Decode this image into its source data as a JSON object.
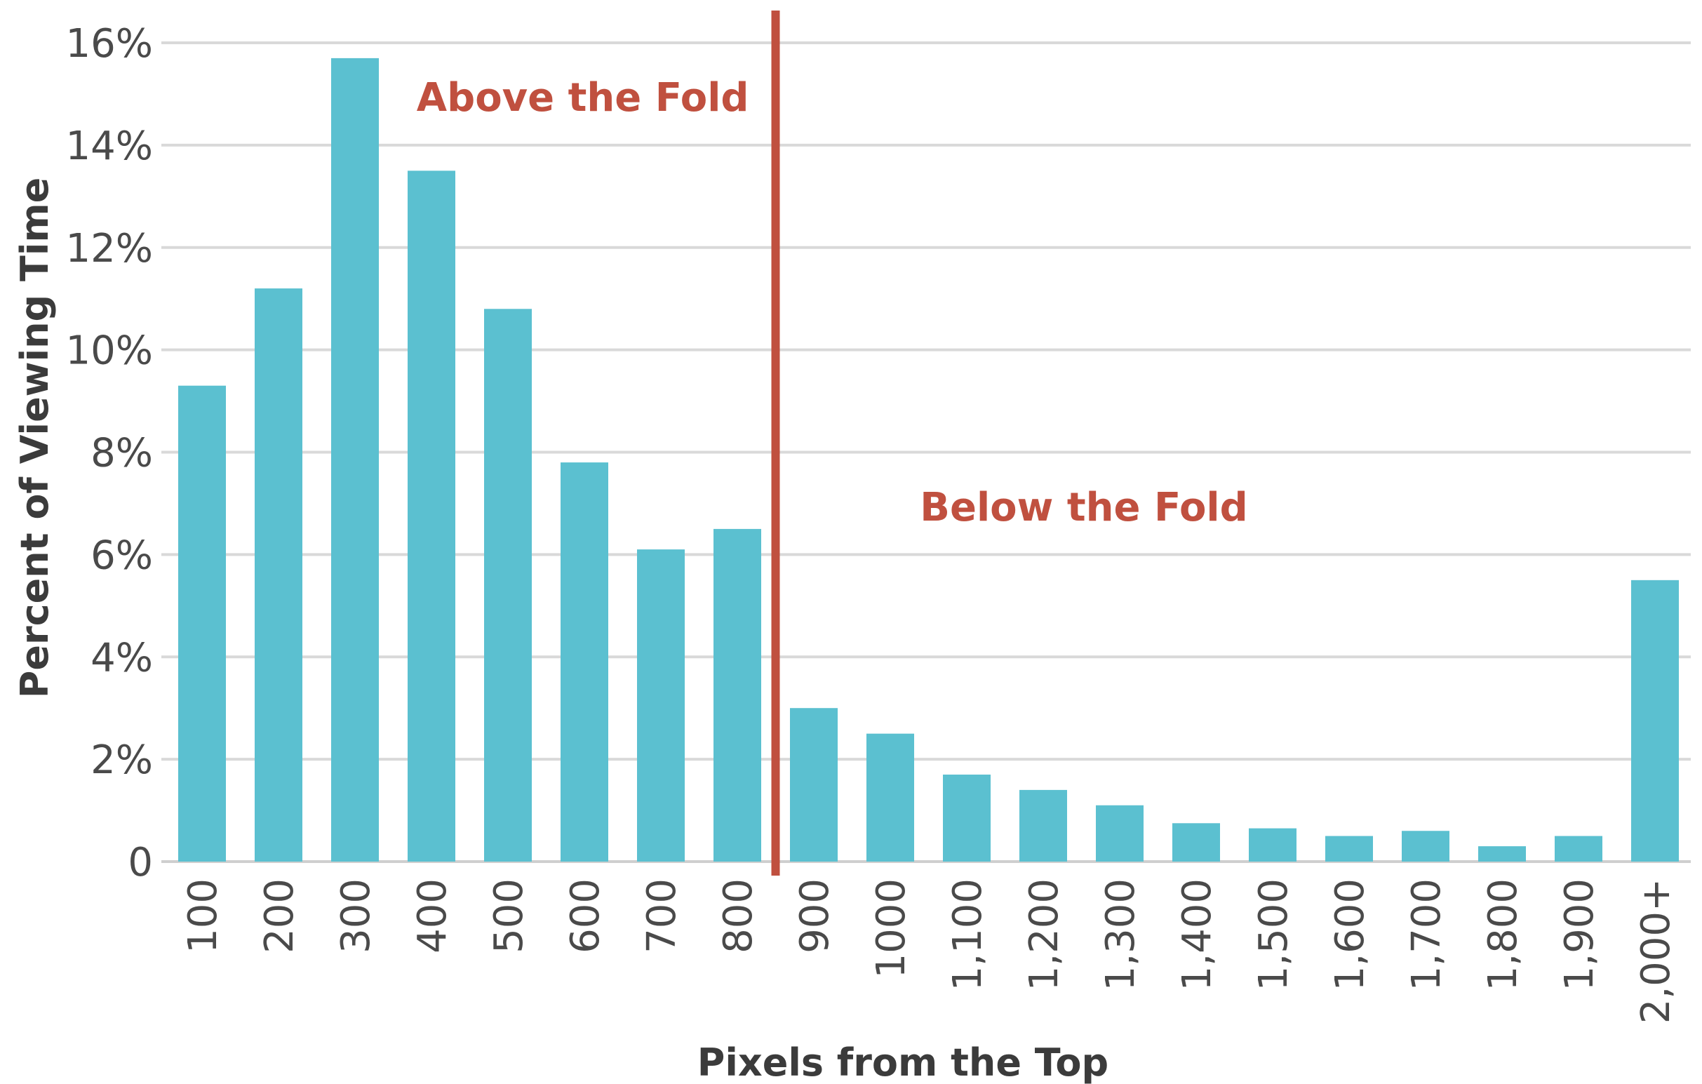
{
  "chart_data": {
    "type": "bar",
    "title": "",
    "xlabel": "Pixels from the Top",
    "ylabel": "Percent of Viewing Time",
    "categories": [
      "100",
      "200",
      "300",
      "400",
      "500",
      "600",
      "700",
      "800",
      "900",
      "1000",
      "1,100",
      "1,200",
      "1,300",
      "1,400",
      "1,500",
      "1,600",
      "1,700",
      "1,800",
      "1,900",
      "2,000+"
    ],
    "values": [
      9.3,
      11.2,
      15.7,
      13.5,
      10.8,
      7.8,
      6.1,
      6.5,
      3.0,
      2.5,
      1.7,
      1.4,
      1.1,
      0.75,
      0.65,
      0.5,
      0.6,
      0.3,
      0.5,
      5.5
    ],
    "ylim": [
      0,
      16
    ],
    "yticks": [
      0,
      2,
      4,
      6,
      8,
      10,
      12,
      14,
      16
    ],
    "ytick_labels": [
      "0",
      "2%",
      "4%",
      "6%",
      "8%",
      "10%",
      "12%",
      "14%",
      "16%"
    ],
    "grid": true,
    "colors": {
      "bar": "#5bc0d0",
      "fold_line": "#c0503f",
      "annotation": "#c0503f",
      "grid": "#d9d9d9"
    },
    "fold": {
      "between_categories": [
        "800",
        "900"
      ],
      "label_above": "Above the Fold",
      "label_below": "Below the Fold"
    }
  }
}
